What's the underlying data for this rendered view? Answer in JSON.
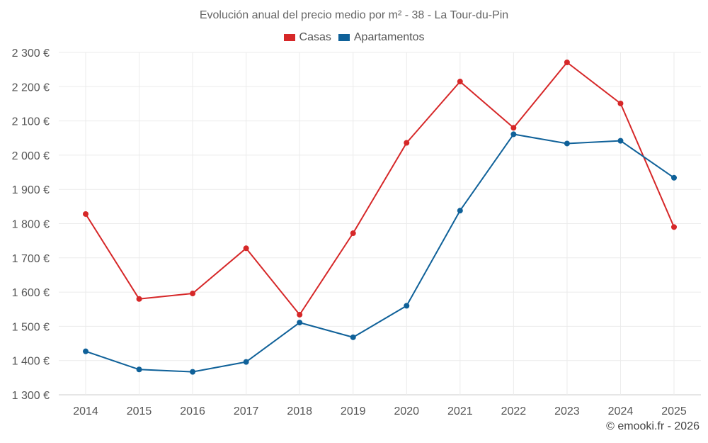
{
  "chart_data": {
    "type": "line",
    "title": "Evolución anual del precio medio por m² - 38 - La Tour-du-Pin",
    "categories": [
      "2014",
      "2015",
      "2016",
      "2017",
      "2018",
      "2019",
      "2020",
      "2021",
      "2022",
      "2023",
      "2024",
      "2025"
    ],
    "series": [
      {
        "name": "Casas",
        "color": "#d62728",
        "values": [
          1828,
          1580,
          1596,
          1728,
          1534,
          1772,
          2036,
          2215,
          2080,
          2271,
          2151,
          1790
        ]
      },
      {
        "name": "Apartamentos",
        "color": "#0f6199",
        "values": [
          1427,
          1374,
          1367,
          1396,
          1511,
          1468,
          1560,
          1838,
          2061,
          2034,
          2042,
          1934
        ]
      }
    ],
    "y_ticks": [
      "1 300 €",
      "1 400 €",
      "1 500 €",
      "1 600 €",
      "1 700 €",
      "1 800 €",
      "1 900 €",
      "2 000 €",
      "2 100 €",
      "2 200 €",
      "2 300 €"
    ],
    "y_tick_values": [
      1300,
      1400,
      1500,
      1600,
      1700,
      1800,
      1900,
      2000,
      2100,
      2200,
      2300
    ],
    "ylim": [
      1300,
      2300
    ],
    "xlabel": "",
    "ylabel": "",
    "grid": true,
    "legend_position": "top-center"
  },
  "credit": "© emooki.fr - 2026"
}
